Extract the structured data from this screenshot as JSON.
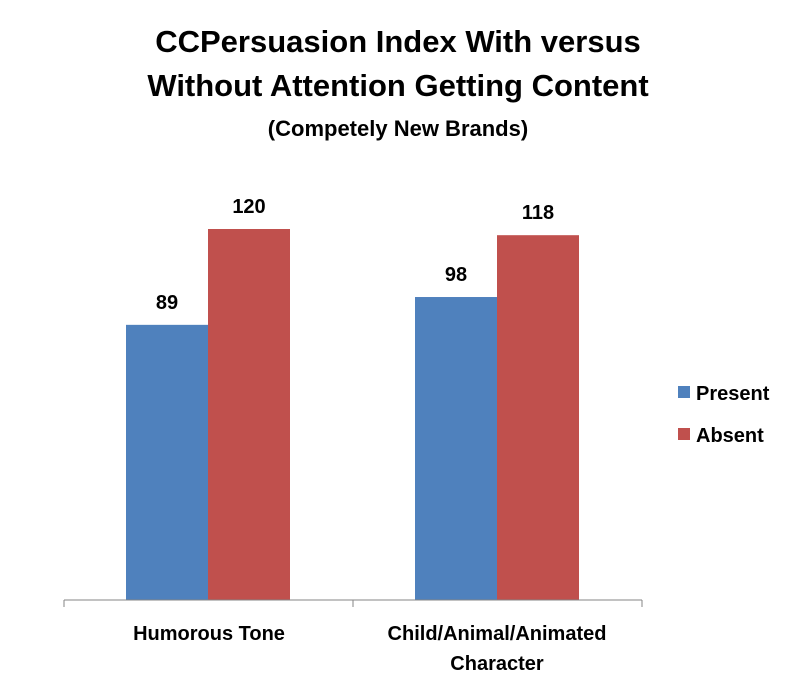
{
  "chart_data": {
    "type": "bar",
    "title_line1": "CCPersuasion Index With versus",
    "title_line2": "Without Attention Getting Content",
    "subtitle": "(Competely New Brands)",
    "categories": [
      {
        "line1": "Humorous Tone",
        "line2": ""
      },
      {
        "line1": "Child/Animal/Animated",
        "line2": "Character"
      }
    ],
    "series": [
      {
        "name": "Present",
        "color": "#4F81BD",
        "values": [
          89,
          98
        ]
      },
      {
        "name": "Absent",
        "color": "#C0504D",
        "values": [
          120,
          118
        ]
      }
    ],
    "ylim": [
      0,
      120
    ],
    "grid": false,
    "legend_position": "right"
  }
}
